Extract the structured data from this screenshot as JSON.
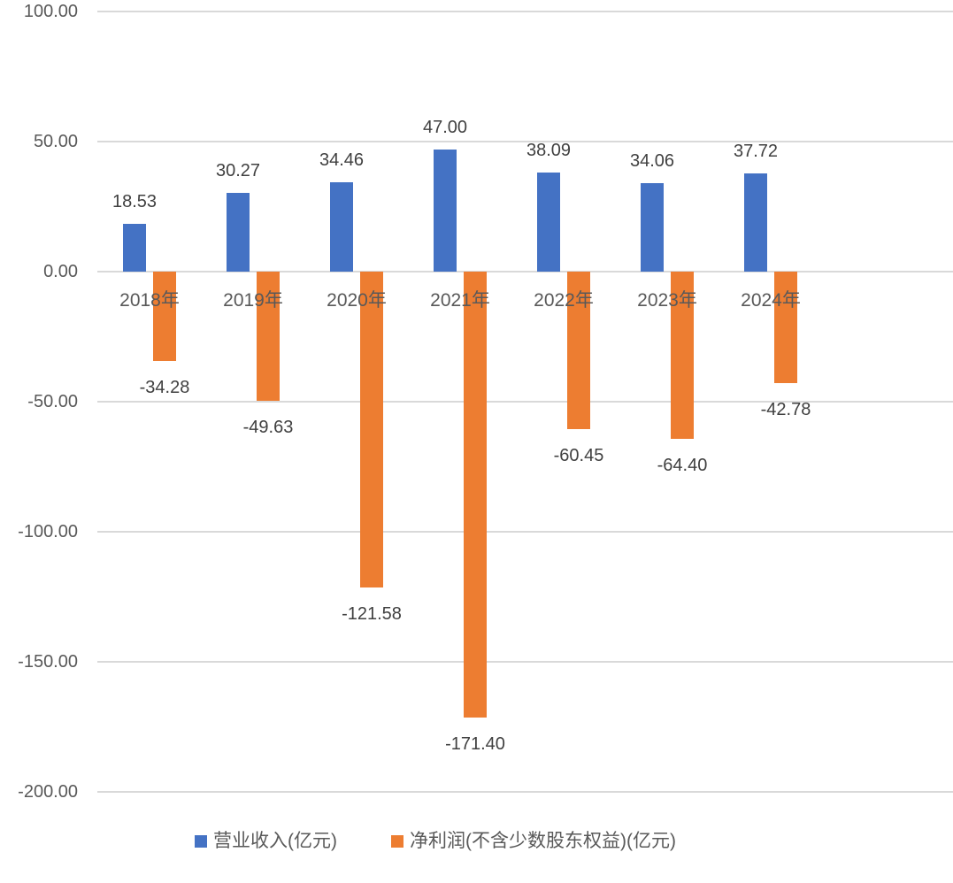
{
  "chart_data": {
    "type": "bar",
    "categories": [
      "2018年",
      "2019年",
      "2020年",
      "2021年",
      "2022年",
      "2023年",
      "2024年"
    ],
    "series": [
      {
        "key": "revenue",
        "name": "营业收入(亿元)",
        "color": "#4472C4",
        "values": [
          18.53,
          30.27,
          34.46,
          47.0,
          38.09,
          34.06,
          37.72
        ]
      },
      {
        "key": "net-profit",
        "name": "净利润(不含少数股东权益)(亿元)",
        "color": "#ED7D31",
        "values": [
          -34.28,
          -49.63,
          -121.58,
          -171.4,
          -60.45,
          -64.4,
          -42.78
        ]
      }
    ],
    "y_axis": {
      "min": -200,
      "max": 100,
      "tick_step": 50,
      "ticks": [
        100,
        50,
        0,
        -50,
        -100,
        -150,
        -200
      ],
      "tick_label_format": "two decimal places"
    },
    "value_labels": "shown outside end of every bar, two decimal places",
    "grid": "horizontal gridlines on",
    "legend_position": "bottom",
    "styles": {
      "gridline_color": "#D9D9D9",
      "axis_label_color": "#595959",
      "category_label_color": "#595959",
      "value_label_color": "#404040",
      "background": "#FFFFFF"
    }
  }
}
